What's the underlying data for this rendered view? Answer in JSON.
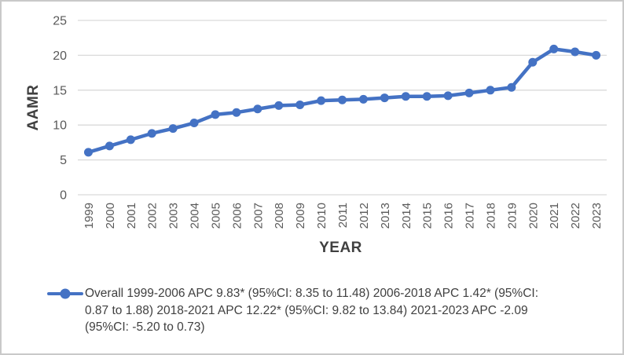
{
  "chart_data": {
    "type": "line",
    "title": "",
    "xlabel": "YEAR",
    "ylabel": "AAMR",
    "x": [
      "1999",
      "2000",
      "2001",
      "2002",
      "2003",
      "2004",
      "2005",
      "2006",
      "2007",
      "2008",
      "2009",
      "2010",
      "2011",
      "2012",
      "2013",
      "2014",
      "2015",
      "2016",
      "2017",
      "2018",
      "2019",
      "2020",
      "2021",
      "2022",
      "2023"
    ],
    "series": [
      {
        "name": "Overall",
        "color": "#4472C4",
        "marker": "circle",
        "values": [
          6.1,
          7.0,
          7.9,
          8.8,
          9.5,
          10.3,
          11.5,
          11.8,
          12.3,
          12.8,
          12.9,
          13.5,
          13.6,
          13.7,
          13.9,
          14.1,
          14.1,
          14.2,
          14.6,
          15.0,
          15.4,
          19.0,
          20.9,
          20.5,
          20.0
        ]
      }
    ],
    "ylim": [
      0,
      25
    ],
    "yticks": [
      0,
      5,
      10,
      15,
      20,
      25
    ],
    "grid": "horizontal",
    "legend_position": "bottom"
  },
  "legend": {
    "full_text": "Overall 1999-2006 APC 9.83* (95%CI: 8.35 to 11.48) 2006-2018 APC 1.42* (95%CI: 0.87 to 1.88) 2018-2021 APC 12.22* (95%CI: 9.82 to 13.84) 2021-2023 APC -2.09 (95%CI: -5.20 to 0.73)",
    "lines": [
      "Overall 1999-2006 APC 9.83* (95%CI: 8.35 to 11.48) 2006-2018 APC 1.42* (95%CI:",
      "0.87 to 1.88) 2018-2021 APC 12.22* (95%CI: 9.82 to 13.84) 2021-2023 APC -2.09",
      "(95%CI: -5.20 to 0.73)"
    ]
  },
  "colors": {
    "line": "#4472C4",
    "gridline": "#D9D9D9",
    "tick_label": "#595959",
    "axis_title": "#404040",
    "legend_text": "#404040",
    "border": "#C9C9C9",
    "background": "#FFFFFF"
  }
}
